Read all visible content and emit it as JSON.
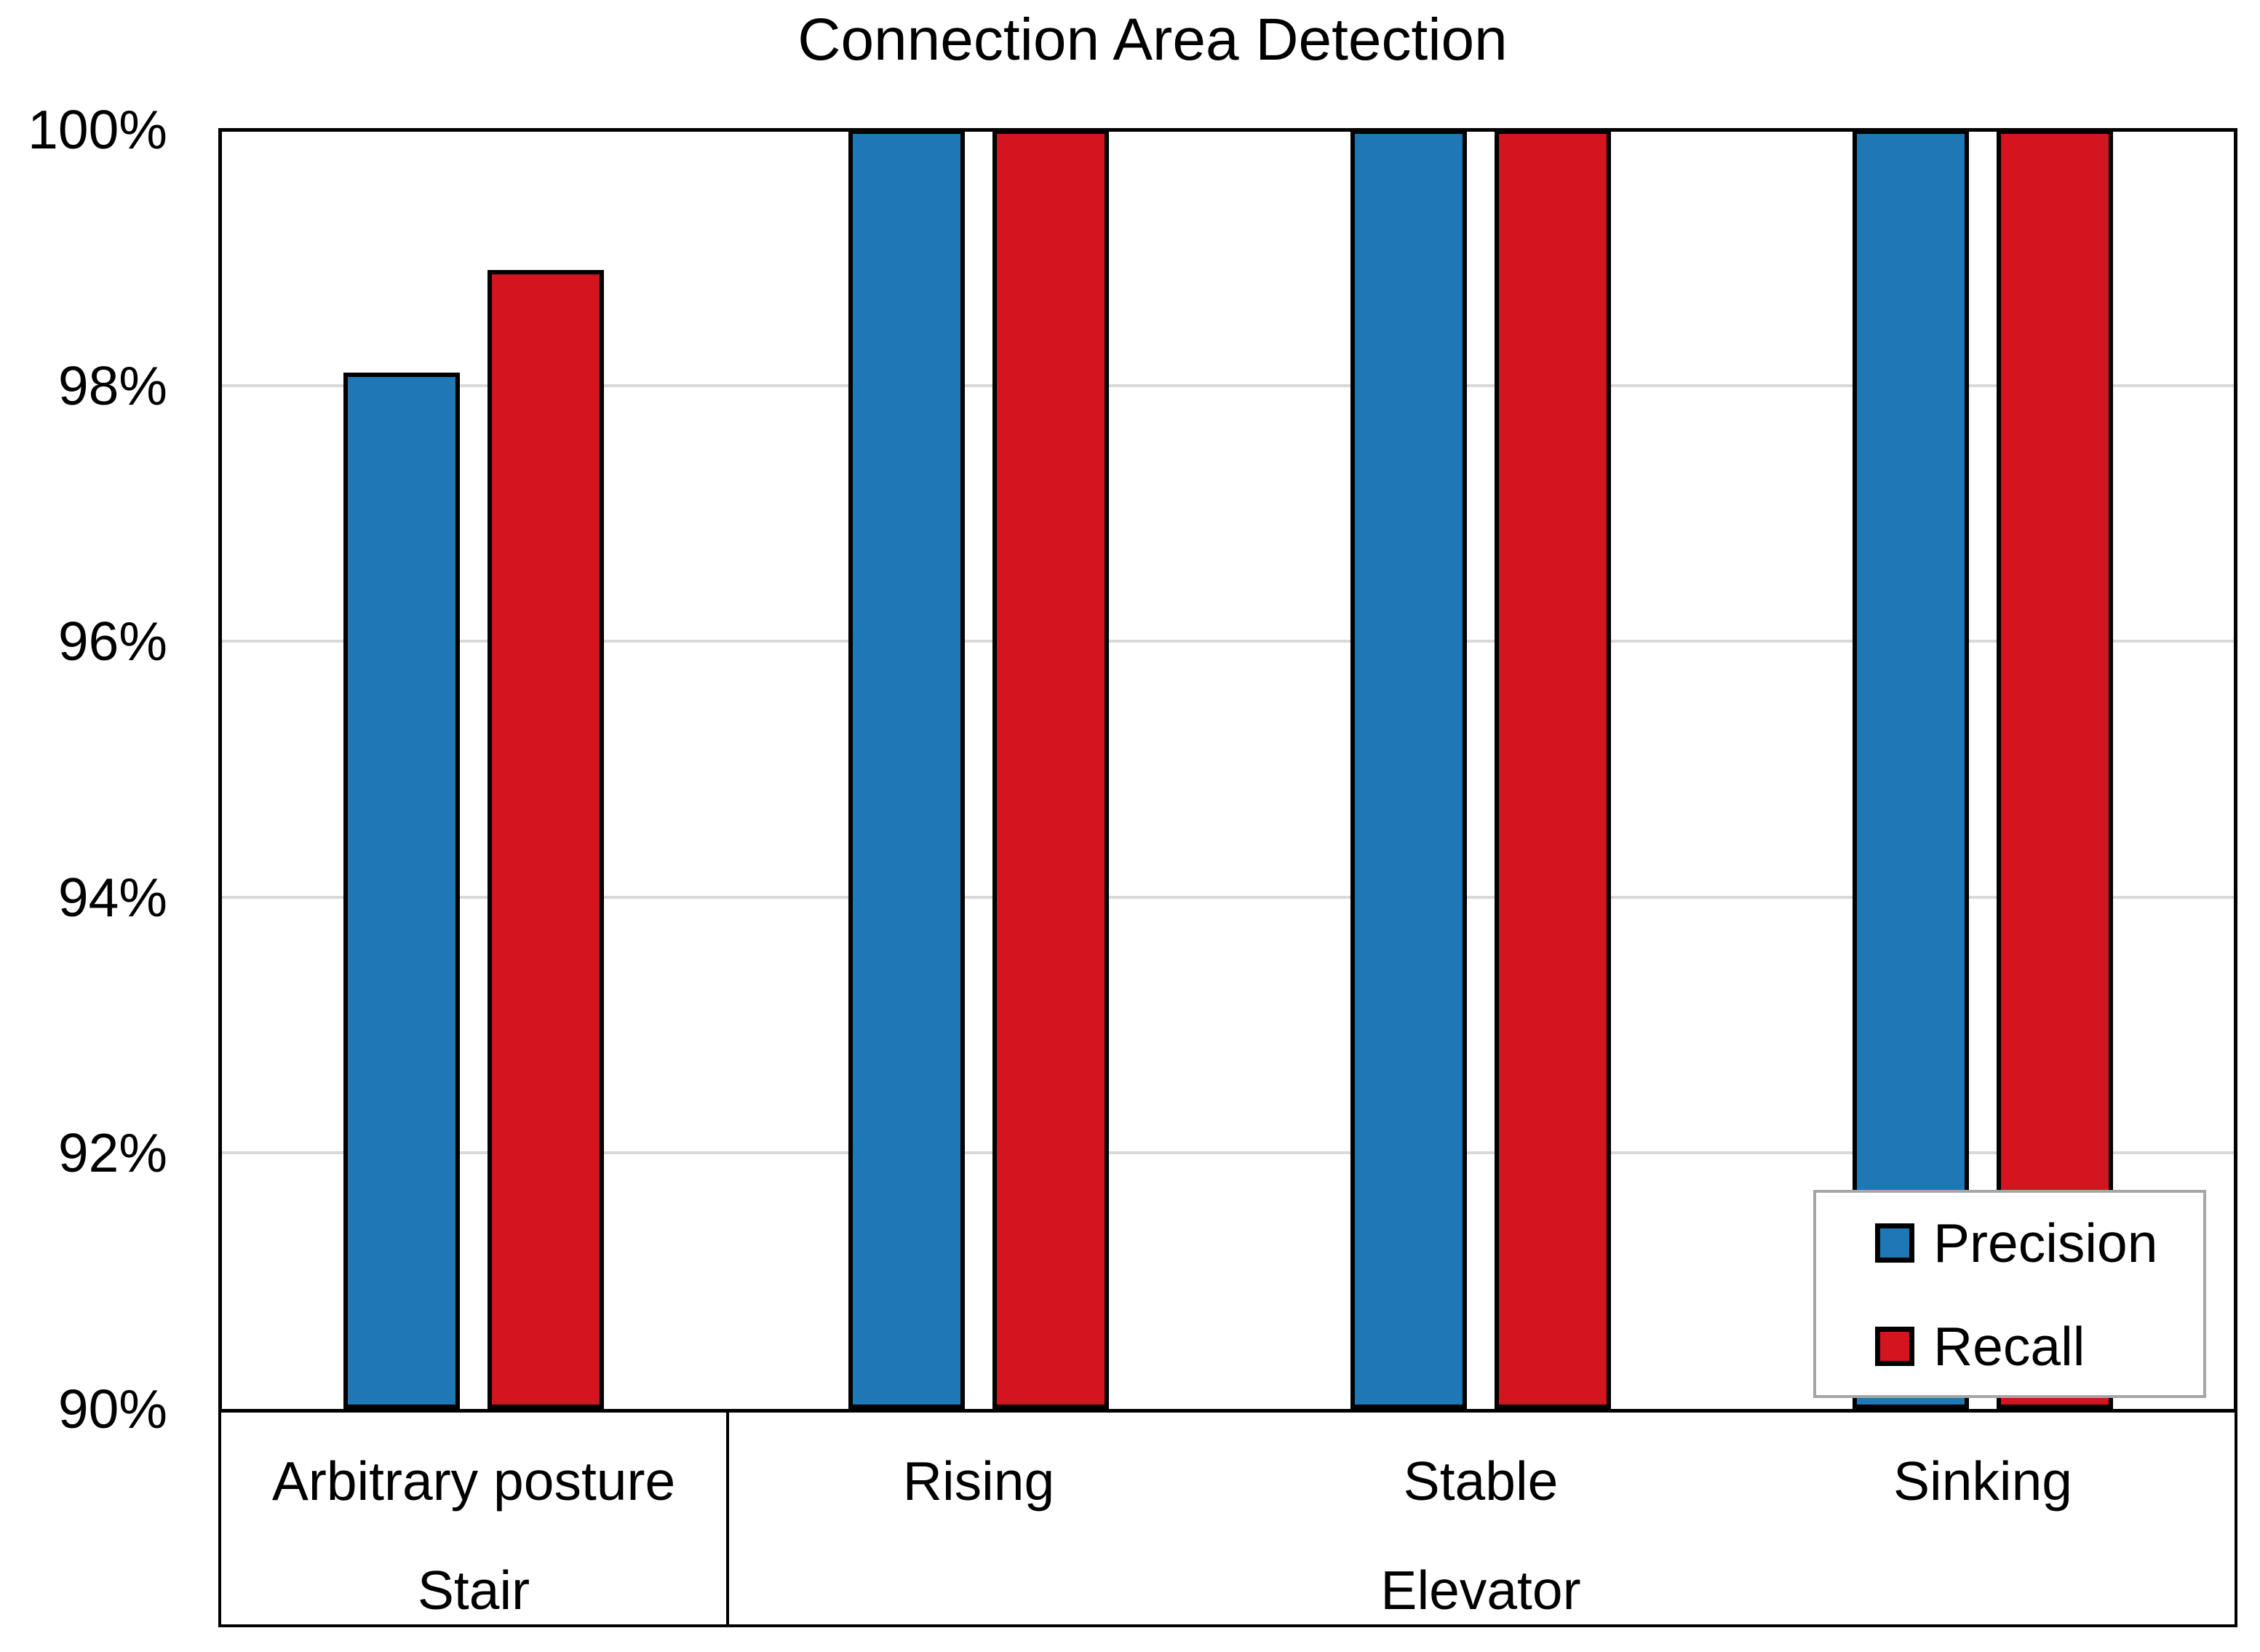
{
  "chart_data": {
    "type": "bar",
    "title": "Connection Area Detection",
    "ylim": [
      90,
      100
    ],
    "ytick_step": 2,
    "ytick_labels": [
      "90%",
      "92%",
      "94%",
      "96%",
      "98%",
      "100%"
    ],
    "grid": "horizontal-light",
    "legend_position": "bottom-right",
    "groups": [
      {
        "label": "Stair",
        "categories": [
          "Arbitrary posture"
        ]
      },
      {
        "label": "Elevator",
        "categories": [
          "Rising",
          "Stable",
          "Sinking"
        ]
      }
    ],
    "categories": [
      "Arbitrary posture",
      "Rising",
      "Stable",
      "Sinking"
    ],
    "series": [
      {
        "name": "Precision",
        "color": "#1F78B6",
        "values": [
          98.1,
          100,
          100,
          100
        ]
      },
      {
        "name": "Recall",
        "color": "#D2151E",
        "values": [
          98.9,
          100,
          100,
          100
        ]
      }
    ]
  },
  "colors": {
    "background": "#FFFFFF",
    "gridline": "#D9D9D9",
    "axis": "#000000",
    "legend_border": "#A6A6A6",
    "text": "#000000"
  }
}
